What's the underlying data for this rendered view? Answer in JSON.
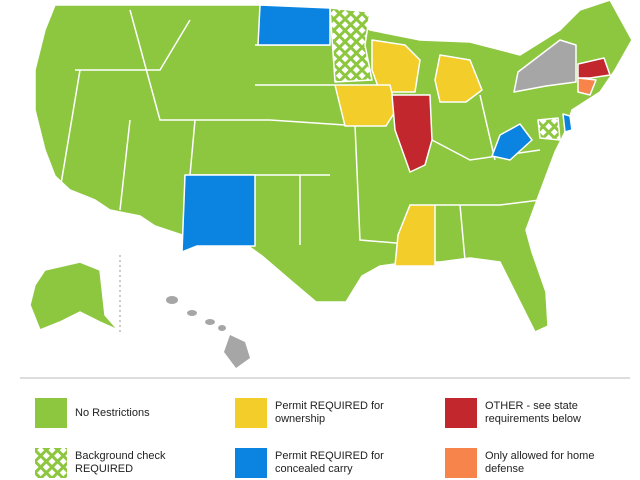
{
  "legend": {
    "items": [
      {
        "label": "No Restrictions",
        "color": "#8dc63f"
      },
      {
        "label": "Permit REQUIRED for ownership",
        "color": "#f3cd2a"
      },
      {
        "label": "OTHER - see state requirements below",
        "color": "#c1272d"
      },
      {
        "label": "Background check REQUIRED",
        "color": "#8dc63f",
        "pattern": "crosshatch"
      },
      {
        "label": "Permit REQUIRED for concealed carry",
        "color": "#0a84e0"
      },
      {
        "label": "Only allowed for home defense",
        "color": "#f7844a"
      }
    ]
  }
}
